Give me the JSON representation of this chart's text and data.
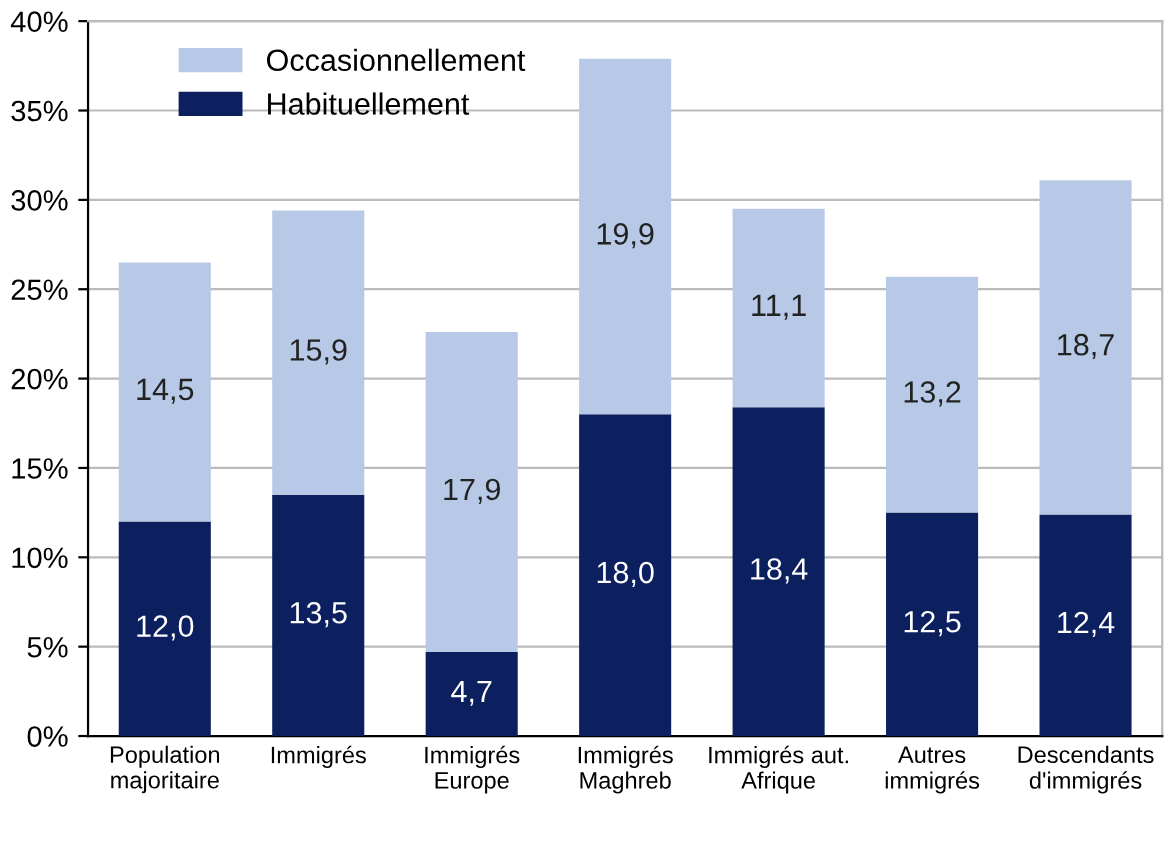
{
  "chart_data": {
    "type": "bar",
    "stacked": true,
    "categories": [
      "Population\nmajoritaire",
      "Immigrés",
      "Immigrés\nEurope",
      "Immigrés\nMaghreb",
      "Immigrés aut.\nAfrique",
      "Autres\nimmigrés",
      "Descendants\nd'immigrés"
    ],
    "series": [
      {
        "name": "Habituellement",
        "color": "#0c1f5e",
        "values": [
          12.0,
          13.5,
          4.7,
          18.0,
          18.4,
          12.5,
          12.4
        ],
        "value_labels": [
          "12,0",
          "13,5",
          "4,7",
          "18,0",
          "18,4",
          "12,5",
          "12,4"
        ]
      },
      {
        "name": "Occasionnellement",
        "color": "#b7c9e6",
        "values": [
          14.5,
          15.9,
          17.9,
          19.9,
          11.1,
          13.2,
          18.7
        ],
        "value_labels": [
          "14,5",
          "15,9",
          "17,9",
          "19,9",
          "11,1",
          "13,2",
          "18,7"
        ]
      }
    ],
    "ylim": [
      0,
      40
    ],
    "yticks": [
      {
        "value": 0,
        "label": "0%"
      },
      {
        "value": 5,
        "label": "5%"
      },
      {
        "value": 10,
        "label": "10%"
      },
      {
        "value": 15,
        "label": "15%"
      },
      {
        "value": 20,
        "label": "20%"
      },
      {
        "value": 25,
        "label": "25%"
      },
      {
        "value": 30,
        "label": "30%"
      },
      {
        "value": 35,
        "label": "35%"
      },
      {
        "value": 40,
        "label": "40%"
      }
    ],
    "grid": "y",
    "legend": "top left"
  }
}
